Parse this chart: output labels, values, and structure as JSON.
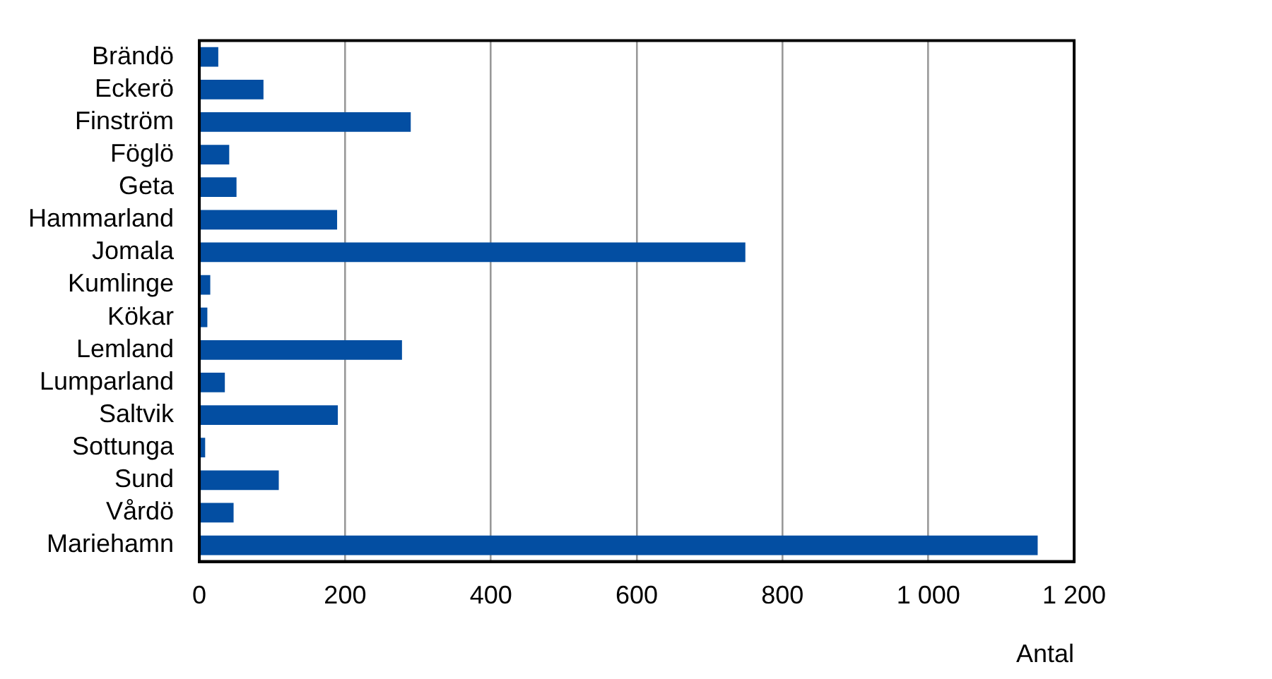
{
  "chart_data": {
    "type": "bar",
    "orientation": "horizontal",
    "xlabel": "Antal",
    "categories": [
      "Brändö",
      "Eckerö",
      "Finström",
      "Föglö",
      "Geta",
      "Hammarland",
      "Jomala",
      "Kumlinge",
      "Kökar",
      "Lemland",
      "Lumparland",
      "Saltvik",
      "Sottunga",
      "Sund",
      "Vårdö",
      "Mariehamn"
    ],
    "values": [
      26,
      88,
      290,
      41,
      51,
      189,
      749,
      15,
      11,
      278,
      35,
      190,
      8,
      109,
      47,
      1150
    ],
    "color": "#034ea2",
    "xlim": [
      0,
      1200
    ],
    "xticks": [
      0,
      200,
      400,
      600,
      800,
      {
        "value": 1000,
        "label": "1 000"
      },
      {
        "value": 1200,
        "label": "1 200"
      }
    ],
    "grid": "x",
    "legend": false
  }
}
